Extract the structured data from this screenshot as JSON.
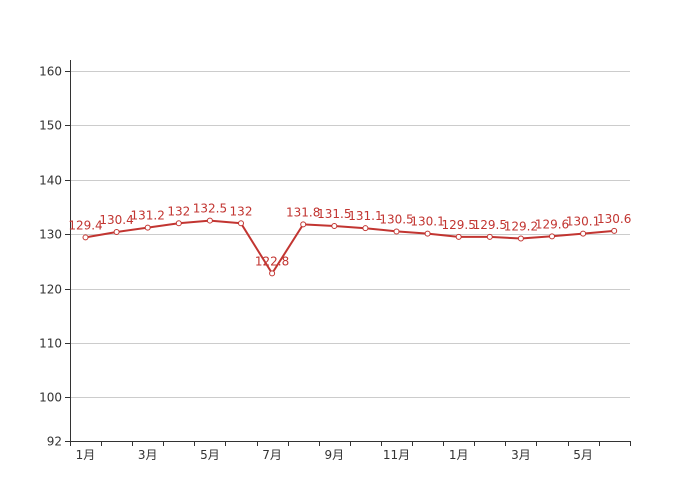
{
  "chart_data": {
    "type": "line",
    "title": "",
    "xlabel": "",
    "ylabel": "",
    "ylim": [
      92,
      162
    ],
    "yticks": [
      92,
      100,
      110,
      120,
      130,
      140,
      150,
      160
    ],
    "grid": true,
    "legend": "none",
    "x_tick_labels": [
      "1月",
      "3月",
      "5月",
      "7月",
      "9月",
      "11月",
      "1月",
      "3月",
      "5月"
    ],
    "series": [
      {
        "color": "#c23531",
        "values": [
          129.4,
          130.4,
          131.2,
          132,
          132.5,
          132,
          122.8,
          131.8,
          131.5,
          131.1,
          130.5,
          130.1,
          129.5,
          129.5,
          129.2,
          129.6,
          130.1,
          130.6
        ],
        "labels": [
          "129.4",
          "130.4",
          "131.2",
          "132",
          "132.5",
          "132",
          "122.8",
          "131.8",
          "131.5",
          "131.1",
          "130.5",
          "130.1",
          "129.5",
          "129.5",
          "129.2",
          "129.6",
          "130.1",
          "130.6"
        ]
      }
    ]
  }
}
